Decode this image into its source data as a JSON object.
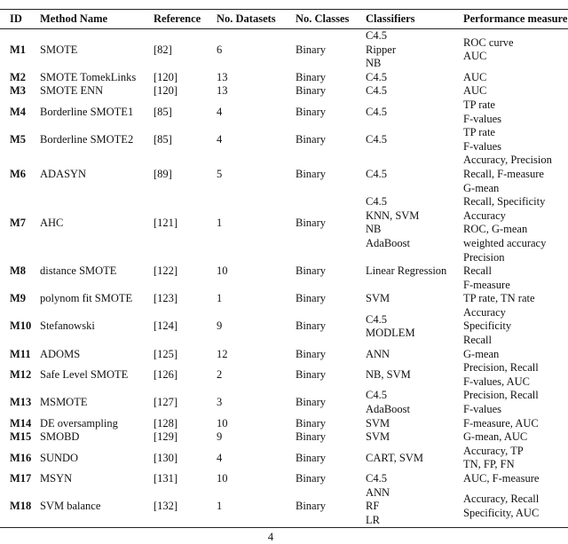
{
  "table": {
    "header": [
      "ID",
      "Method Name",
      "Reference",
      "No. Datasets",
      "No. Classes",
      "Classifiers",
      "Performance measure"
    ],
    "rows": [
      [
        "M1",
        "SMOTE",
        "[82]",
        "6",
        "Binary",
        [
          "C4.5",
          "Ripper",
          "NB"
        ],
        [
          "ROC curve",
          "AUC"
        ]
      ],
      [
        "M2",
        "SMOTE TomekLinks",
        "[120]",
        "13",
        "Binary",
        [
          "C4.5"
        ],
        [
          "AUC"
        ]
      ],
      [
        "M3",
        "SMOTE ENN",
        "[120]",
        "13",
        "Binary",
        [
          "C4.5"
        ],
        [
          "AUC"
        ]
      ],
      [
        "M4",
        "Borderline SMOTE1",
        "[85]",
        "4",
        "Binary",
        [
          "C4.5"
        ],
        [
          "TP rate",
          "F-values"
        ]
      ],
      [
        "M5",
        "Borderline SMOTE2",
        "[85]",
        "4",
        "Binary",
        [
          "C4.5"
        ],
        [
          "TP rate",
          "F-values"
        ]
      ],
      [
        "M6",
        "ADASYN",
        "[89]",
        "5",
        "Binary",
        [
          "C4.5"
        ],
        [
          "Accuracy, Precision",
          "Recall, F-measure",
          "G-mean"
        ]
      ],
      [
        "M7",
        "AHC",
        "[121]",
        "1",
        "Binary",
        [
          "C4.5",
          "KNN, SVM",
          "NB",
          "AdaBoost"
        ],
        [
          "Recall, Specificity",
          "Accuracy",
          "ROC, G-mean",
          "weighted accuracy"
        ]
      ],
      [
        "M8",
        "distance SMOTE",
        "[122]",
        "10",
        "Binary",
        [
          "Linear Regression"
        ],
        [
          "Precision",
          "Recall",
          "F-measure"
        ]
      ],
      [
        "M9",
        "polynom fit SMOTE",
        "[123]",
        "1",
        "Binary",
        [
          "SVM"
        ],
        [
          "TP rate, TN rate"
        ]
      ],
      [
        "M10",
        "Stefanowski",
        "[124]",
        "9",
        "Binary",
        [
          "C4.5",
          "MODLEM"
        ],
        [
          "Accuracy",
          "Specificity",
          "Recall"
        ]
      ],
      [
        "M11",
        "ADOMS",
        "[125]",
        "12",
        "Binary",
        [
          "ANN"
        ],
        [
          "G-mean"
        ]
      ],
      [
        "M12",
        "Safe Level SMOTE",
        "[126]",
        "2",
        "Binary",
        [
          "NB, SVM"
        ],
        [
          "Precision, Recall",
          "F-values, AUC"
        ]
      ],
      [
        "M13",
        "MSMOTE",
        "[127]",
        "3",
        "Binary",
        [
          "C4.5",
          "AdaBoost"
        ],
        [
          "Precision, Recall",
          "F-values"
        ]
      ],
      [
        "M14",
        "DE oversampling",
        "[128]",
        "10",
        "Binary",
        [
          "SVM"
        ],
        [
          "F-measure, AUC"
        ]
      ],
      [
        "M15",
        "SMOBD",
        "[129]",
        "9",
        "Binary",
        [
          "SVM"
        ],
        [
          "G-mean, AUC"
        ]
      ],
      [
        "M16",
        "SUNDO",
        "[130]",
        "4",
        "Binary",
        [
          "CART, SVM"
        ],
        [
          "Accuracy, TP",
          "TN, FP, FN"
        ]
      ],
      [
        "M17",
        "MSYN",
        "[131]",
        "10",
        "Binary",
        [
          "C4.5"
        ],
        [
          "AUC, F-measure"
        ]
      ],
      [
        "M18",
        "SVM balance",
        "[132]",
        "1",
        "Binary",
        [
          "ANN",
          "RF",
          "LR"
        ],
        [
          "Accuracy, Recall",
          "Specificity, AUC"
        ]
      ]
    ]
  },
  "page_number": "4"
}
